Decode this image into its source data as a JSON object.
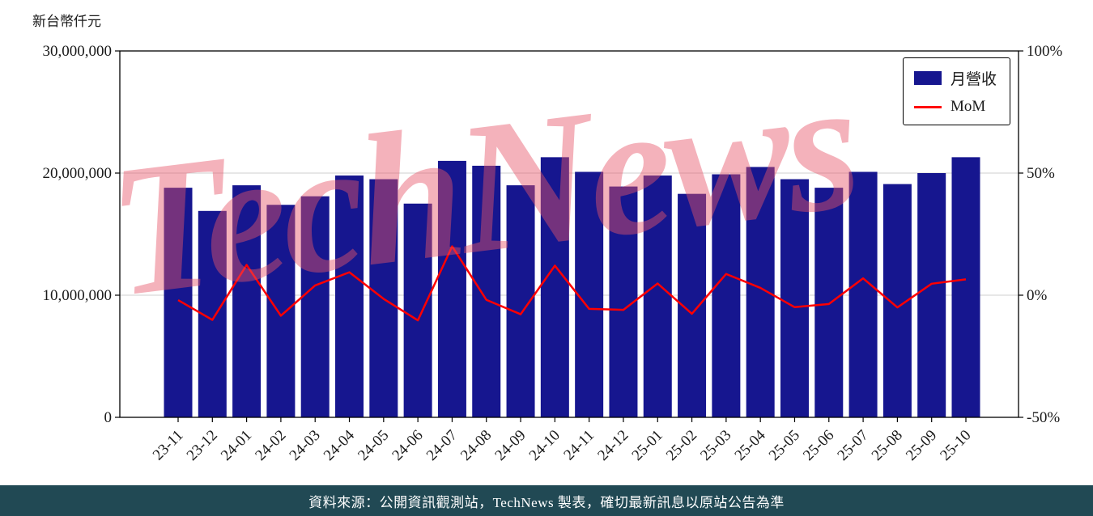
{
  "page": {
    "y_axis_unit_label": "新台幣仟元",
    "watermark": "TechNews",
    "footer_text": "資料來源：公開資訊觀測站，TechNews 製表，確切最新訊息以原站公告為準"
  },
  "legend": {
    "revenue_label": "月營收",
    "mom_label": "MoM"
  },
  "colors": {
    "bar": "#16168f",
    "line": "#ff0000",
    "gridline": "#cfcfcf",
    "axis": "#000000",
    "tick_text": "#1a1a1a",
    "footer_bg": "#214954",
    "watermark_color": "rgba(230,85,105,0.45)"
  },
  "chart_data": {
    "type": "bar",
    "title": "",
    "xlabel": "",
    "ylabel": "新台幣仟元",
    "grid": "horizontal",
    "legend_position": "upper right",
    "categories": [
      "23-11",
      "23-12",
      "24-01",
      "24-02",
      "24-03",
      "24-04",
      "24-05",
      "24-06",
      "24-07",
      "24-08",
      "24-09",
      "24-10",
      "24-11",
      "24-12",
      "25-01",
      "25-02",
      "25-03",
      "25-04",
      "25-05",
      "25-06",
      "25-07",
      "25-08",
      "25-09",
      "25-10"
    ],
    "series": [
      {
        "name": "月營收",
        "type": "bar",
        "axis": "left",
        "unit": "新台幣仟元",
        "color": "#16168f",
        "values": [
          18800000,
          16900000,
          19000000,
          17400000,
          18100000,
          19800000,
          19500000,
          17500000,
          21000000,
          20600000,
          19000000,
          21300000,
          20100000,
          18900000,
          19800000,
          18300000,
          19900000,
          20500000,
          19500000,
          18800000,
          20100000,
          19100000,
          20000000,
          21300000
        ]
      },
      {
        "name": "MoM",
        "type": "line",
        "axis": "right",
        "unit": "%",
        "color": "#ff0000",
        "values": [
          -2.0,
          -10.1,
          12.4,
          -8.4,
          4.0,
          9.4,
          -1.5,
          -10.3,
          20.0,
          -1.9,
          -7.8,
          12.1,
          -5.6,
          -6.0,
          4.8,
          -7.6,
          8.7,
          3.0,
          -4.9,
          -3.6,
          6.9,
          -5.0,
          4.7,
          6.5
        ]
      }
    ],
    "left_axis": {
      "title": "新台幣仟元",
      "min": 0,
      "max": 30000000,
      "tick_values": [
        0,
        10000000,
        20000000,
        30000000
      ],
      "tick_labels": [
        "0",
        "10,000,000",
        "20,000,000",
        "30,000,000"
      ]
    },
    "right_axis": {
      "min": -50,
      "max": 100,
      "tick_values": [
        -50,
        0,
        50,
        100
      ],
      "tick_labels": [
        "-50%",
        "0%",
        "50%",
        "100%"
      ]
    }
  }
}
